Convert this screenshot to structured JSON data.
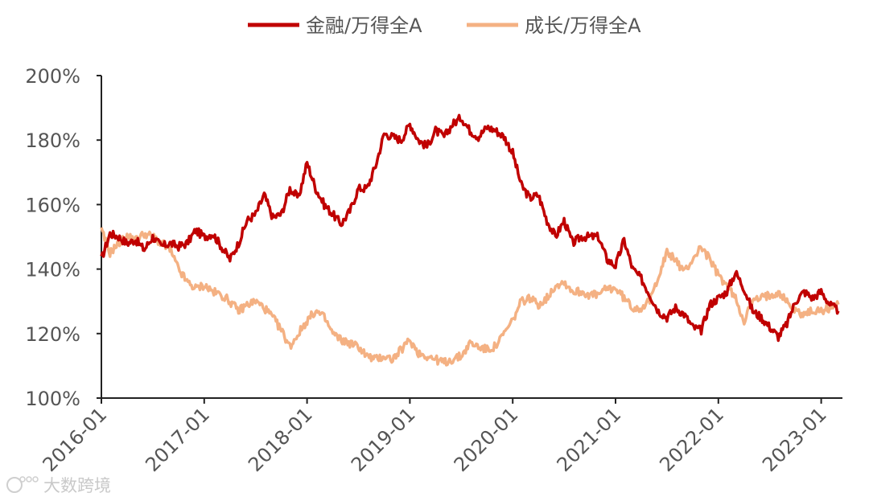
{
  "chart_data": {
    "type": "line",
    "title": "",
    "xlabel": "",
    "ylabel": "",
    "y_unit": "%",
    "ylim": [
      100,
      200
    ],
    "y_ticks": [
      "100%",
      "120%",
      "140%",
      "160%",
      "180%",
      "200%"
    ],
    "x_range": [
      "2016-01",
      "2023-03"
    ],
    "x_ticks": [
      "2016-01",
      "2017-01",
      "2018-01",
      "2019-01",
      "2020-01",
      "2021-01",
      "2022-01",
      "2023-01"
    ],
    "grid": false,
    "legend_position": "top-center",
    "colors": {
      "金融/万得全A": "#c00000",
      "成长/万得全A": "#f4b183"
    },
    "series": [
      {
        "name": "金融/万得全A",
        "points": [
          [
            "2016-01",
            143
          ],
          [
            "2016-02",
            151
          ],
          [
            "2016-03",
            150
          ],
          [
            "2016-04",
            148
          ],
          [
            "2016-05",
            149
          ],
          [
            "2016-06",
            146
          ],
          [
            "2016-07",
            150
          ],
          [
            "2016-08",
            147
          ],
          [
            "2016-09",
            148
          ],
          [
            "2016-10",
            147
          ],
          [
            "2016-11",
            148
          ],
          [
            "2016-12",
            152
          ],
          [
            "2017-01",
            150
          ],
          [
            "2017-02",
            151
          ],
          [
            "2017-03",
            147
          ],
          [
            "2017-04",
            143
          ],
          [
            "2017-05",
            148
          ],
          [
            "2017-06",
            155
          ],
          [
            "2017-07",
            157
          ],
          [
            "2017-08",
            163
          ],
          [
            "2017-09",
            156
          ],
          [
            "2017-10",
            157
          ],
          [
            "2017-11",
            165
          ],
          [
            "2017-12",
            162
          ],
          [
            "2018-01",
            173
          ],
          [
            "2018-02",
            165
          ],
          [
            "2018-03",
            160
          ],
          [
            "2018-04",
            157
          ],
          [
            "2018-05",
            154
          ],
          [
            "2018-06",
            158
          ],
          [
            "2018-07",
            165
          ],
          [
            "2018-08",
            165
          ],
          [
            "2018-09",
            172
          ],
          [
            "2018-10",
            182
          ],
          [
            "2018-11",
            181
          ],
          [
            "2018-12",
            180
          ],
          [
            "2019-01",
            185
          ],
          [
            "2019-02",
            180
          ],
          [
            "2019-03",
            178
          ],
          [
            "2019-04",
            183
          ],
          [
            "2019-05",
            181
          ],
          [
            "2019-06",
            185
          ],
          [
            "2019-07",
            187
          ],
          [
            "2019-08",
            183
          ],
          [
            "2019-09",
            181
          ],
          [
            "2019-10",
            184
          ],
          [
            "2019-11",
            183
          ],
          [
            "2019-12",
            181
          ],
          [
            "2020-01",
            176
          ],
          [
            "2020-02",
            166
          ],
          [
            "2020-03",
            162
          ],
          [
            "2020-04",
            163
          ],
          [
            "2020-05",
            155
          ],
          [
            "2020-06",
            150
          ],
          [
            "2020-07",
            155
          ],
          [
            "2020-08",
            148
          ],
          [
            "2020-09",
            150
          ],
          [
            "2020-10",
            150
          ],
          [
            "2020-11",
            150
          ],
          [
            "2020-12",
            143
          ],
          [
            "2021-01",
            141
          ],
          [
            "2021-02",
            149
          ],
          [
            "2021-03",
            140
          ],
          [
            "2021-04",
            137
          ],
          [
            "2021-05",
            132
          ],
          [
            "2021-06",
            127
          ],
          [
            "2021-07",
            125
          ],
          [
            "2021-08",
            128
          ],
          [
            "2021-09",
            126
          ],
          [
            "2021-10",
            122
          ],
          [
            "2021-11",
            121
          ],
          [
            "2021-12",
            129
          ],
          [
            "2022-01",
            131
          ],
          [
            "2022-02",
            133
          ],
          [
            "2022-03",
            139
          ],
          [
            "2022-04",
            134
          ],
          [
            "2022-05",
            127
          ],
          [
            "2022-06",
            125
          ],
          [
            "2022-07",
            122
          ],
          [
            "2022-08",
            119
          ],
          [
            "2022-09",
            123
          ],
          [
            "2022-10",
            130
          ],
          [
            "2022-11",
            133
          ],
          [
            "2022-12",
            131
          ],
          [
            "2023-01",
            133
          ],
          [
            "2023-02",
            129
          ],
          [
            "2023-03",
            127
          ]
        ]
      },
      {
        "name": "成长/万得全A",
        "points": [
          [
            "2016-01",
            152
          ],
          [
            "2016-02",
            145
          ],
          [
            "2016-03",
            148
          ],
          [
            "2016-04",
            150
          ],
          [
            "2016-05",
            149
          ],
          [
            "2016-06",
            151
          ],
          [
            "2016-07",
            150
          ],
          [
            "2016-08",
            148
          ],
          [
            "2016-09",
            146
          ],
          [
            "2016-10",
            140
          ],
          [
            "2016-11",
            136
          ],
          [
            "2016-12",
            134
          ],
          [
            "2017-01",
            135
          ],
          [
            "2017-02",
            133
          ],
          [
            "2017-03",
            132
          ],
          [
            "2017-04",
            130
          ],
          [
            "2017-05",
            127
          ],
          [
            "2017-06",
            129
          ],
          [
            "2017-07",
            130
          ],
          [
            "2017-08",
            128
          ],
          [
            "2017-09",
            125
          ],
          [
            "2017-10",
            121
          ],
          [
            "2017-11",
            116
          ],
          [
            "2017-12",
            120
          ],
          [
            "2018-01",
            124
          ],
          [
            "2018-02",
            127
          ],
          [
            "2018-03",
            125
          ],
          [
            "2018-04",
            120
          ],
          [
            "2018-05",
            118
          ],
          [
            "2018-06",
            117
          ],
          [
            "2018-07",
            116
          ],
          [
            "2018-08",
            113
          ],
          [
            "2018-09",
            112
          ],
          [
            "2018-10",
            113
          ],
          [
            "2018-11",
            112
          ],
          [
            "2018-12",
            115
          ],
          [
            "2019-01",
            118
          ],
          [
            "2019-02",
            114
          ],
          [
            "2019-03",
            113
          ],
          [
            "2019-04",
            112
          ],
          [
            "2019-05",
            111
          ],
          [
            "2019-06",
            112
          ],
          [
            "2019-07",
            113
          ],
          [
            "2019-08",
            117
          ],
          [
            "2019-09",
            116
          ],
          [
            "2019-10",
            115
          ],
          [
            "2019-11",
            116
          ],
          [
            "2019-12",
            120
          ],
          [
            "2020-01",
            124
          ],
          [
            "2020-02",
            130
          ],
          [
            "2020-03",
            131
          ],
          [
            "2020-04",
            129
          ],
          [
            "2020-05",
            131
          ],
          [
            "2020-06",
            135
          ],
          [
            "2020-07",
            136
          ],
          [
            "2020-08",
            133
          ],
          [
            "2020-09",
            133
          ],
          [
            "2020-10",
            132
          ],
          [
            "2020-11",
            132
          ],
          [
            "2020-12",
            134
          ],
          [
            "2021-01",
            134
          ],
          [
            "2021-02",
            131
          ],
          [
            "2021-03",
            128
          ],
          [
            "2021-04",
            128
          ],
          [
            "2021-05",
            130
          ],
          [
            "2021-06",
            138
          ],
          [
            "2021-07",
            145
          ],
          [
            "2021-08",
            143
          ],
          [
            "2021-09",
            139
          ],
          [
            "2021-10",
            143
          ],
          [
            "2021-11",
            147
          ],
          [
            "2021-12",
            143
          ],
          [
            "2022-01",
            138
          ],
          [
            "2022-02",
            135
          ],
          [
            "2022-03",
            131
          ],
          [
            "2022-04",
            124
          ],
          [
            "2022-05",
            130
          ],
          [
            "2022-06",
            131
          ],
          [
            "2022-07",
            132
          ],
          [
            "2022-08",
            133
          ],
          [
            "2022-09",
            130
          ],
          [
            "2022-10",
            127
          ],
          [
            "2022-11",
            126
          ],
          [
            "2022-12",
            127
          ],
          [
            "2023-01",
            127
          ],
          [
            "2023-02",
            128
          ],
          [
            "2023-03",
            129
          ]
        ]
      }
    ]
  },
  "watermark": {
    "text": "大数跨境"
  },
  "icons": {
    "watermark_logo": "watermark-logo-icon"
  }
}
